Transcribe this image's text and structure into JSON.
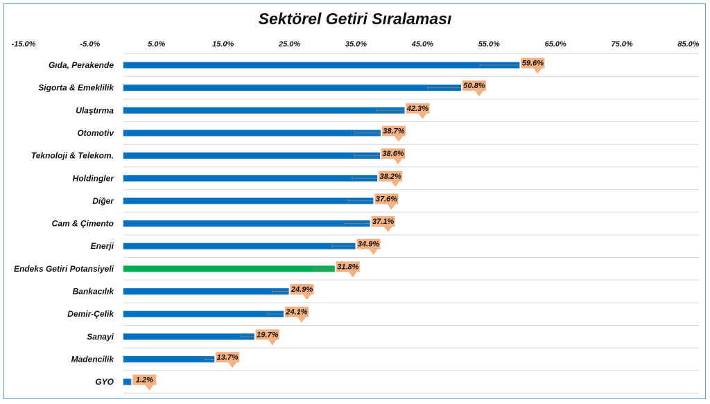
{
  "chart_data": {
    "type": "bar",
    "orientation": "horizontal",
    "title": "Sektörel Getiri Sıralaması",
    "xlim": [
      -15,
      85
    ],
    "x_ticks": [
      "-15.0%",
      "-5.0%",
      "5.0%",
      "15.0%",
      "25.0%",
      "35.0%",
      "45.0%",
      "55.0%",
      "65.0%",
      "75.0%",
      "85.0%"
    ],
    "x_tick_values": [
      -15,
      -5,
      5,
      15,
      25,
      35,
      45,
      55,
      65,
      75,
      85
    ],
    "x_axis_position": "top",
    "grid": "horizontal",
    "categories": [
      "Gıda, Perakende",
      "Sigorta & Emeklilik",
      "Ulaştırma",
      "Otomotiv",
      "Teknoloji & Telekom.",
      "Holdingler",
      "Diğer",
      "Cam & Çimento",
      "Enerji",
      "Endeks Getiri Potansiyeli",
      "Bankacılık",
      "Demir-Çelik",
      "Sanayi",
      "Madencilik",
      "GYO"
    ],
    "values": [
      59.6,
      50.8,
      42.3,
      38.7,
      38.6,
      38.2,
      37.6,
      37.1,
      34.9,
      31.8,
      24.9,
      24.1,
      19.7,
      13.7,
      1.2
    ],
    "value_labels": [
      "59.6%",
      "50.8%",
      "42.3%",
      "38.7%",
      "38.6%",
      "38.2%",
      "37.6%",
      "37.1%",
      "34.9%",
      "31.8%",
      "24.9%",
      "24.1%",
      "19.7%",
      "13.7%",
      "1.2%"
    ],
    "highlight_category": "Endeks Getiri Potansiyeli",
    "colors": {
      "bar": "#0070c0",
      "highlight": "#00b050",
      "label_bg": "#f4b183",
      "gridline": "#d9d9d9",
      "frame": "#5b9bd5"
    }
  }
}
